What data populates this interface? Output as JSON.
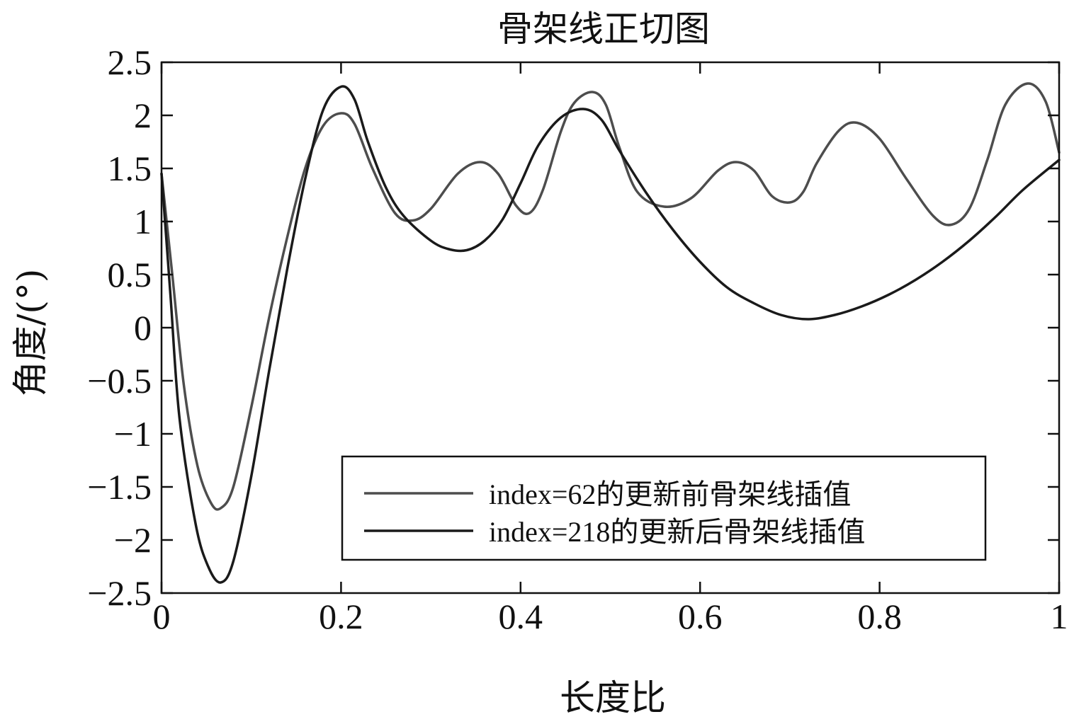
{
  "chart_data": {
    "type": "line",
    "title": "骨架线正切图",
    "xlabel": "长度比",
    "ylabel": "角度/(°)",
    "xlim": [
      0,
      1
    ],
    "ylim": [
      -2.5,
      2.5
    ],
    "x_ticks": [
      0,
      0.2,
      0.4,
      0.6,
      0.8,
      1
    ],
    "x_tick_labels": [
      "0",
      "0.2",
      "0.4",
      "0.6",
      "0.8",
      "1"
    ],
    "y_ticks": [
      2.5,
      2,
      1.5,
      1,
      0.5,
      0,
      -0.5,
      -1,
      -1.5,
      -2,
      -2.5
    ],
    "y_tick_labels": [
      "2.5",
      "2",
      "1.5",
      "1",
      "0.5",
      "0",
      "−0.5",
      "−1",
      "−1.5",
      "−2",
      "−2.5"
    ],
    "grid": false,
    "legend_position": "bottom-right",
    "series": [
      {
        "name": "index=62的更新前骨架线插值",
        "color": "#4d4d4d",
        "points": [
          [
            0,
            1.45
          ],
          [
            0.012,
            0.5
          ],
          [
            0.025,
            -0.55
          ],
          [
            0.04,
            -1.3
          ],
          [
            0.055,
            -1.65
          ],
          [
            0.066,
            -1.7
          ],
          [
            0.08,
            -1.5
          ],
          [
            0.1,
            -0.75
          ],
          [
            0.12,
            0.1
          ],
          [
            0.14,
            0.85
          ],
          [
            0.16,
            1.5
          ],
          [
            0.18,
            1.9
          ],
          [
            0.2,
            2.02
          ],
          [
            0.215,
            1.92
          ],
          [
            0.235,
            1.5
          ],
          [
            0.26,
            1.08
          ],
          [
            0.28,
            1.01
          ],
          [
            0.3,
            1.12
          ],
          [
            0.33,
            1.45
          ],
          [
            0.355,
            1.56
          ],
          [
            0.375,
            1.45
          ],
          [
            0.395,
            1.15
          ],
          [
            0.41,
            1.08
          ],
          [
            0.425,
            1.3
          ],
          [
            0.445,
            1.85
          ],
          [
            0.46,
            2.12
          ],
          [
            0.48,
            2.22
          ],
          [
            0.495,
            2.1
          ],
          [
            0.51,
            1.7
          ],
          [
            0.53,
            1.28
          ],
          [
            0.56,
            1.14
          ],
          [
            0.59,
            1.22
          ],
          [
            0.62,
            1.48
          ],
          [
            0.64,
            1.56
          ],
          [
            0.66,
            1.48
          ],
          [
            0.68,
            1.24
          ],
          [
            0.7,
            1.18
          ],
          [
            0.715,
            1.28
          ],
          [
            0.73,
            1.55
          ],
          [
            0.755,
            1.86
          ],
          [
            0.775,
            1.93
          ],
          [
            0.8,
            1.78
          ],
          [
            0.83,
            1.4
          ],
          [
            0.86,
            1.05
          ],
          [
            0.88,
            0.97
          ],
          [
            0.9,
            1.12
          ],
          [
            0.92,
            1.58
          ],
          [
            0.94,
            2.1
          ],
          [
            0.965,
            2.3
          ],
          [
            0.985,
            2.13
          ],
          [
            1,
            1.65
          ]
        ]
      },
      {
        "name": "index=218的更新后骨架线插值",
        "color": "#1a1a1a",
        "points": [
          [
            0,
            1.45
          ],
          [
            0.01,
            0.3
          ],
          [
            0.02,
            -0.85
          ],
          [
            0.038,
            -1.85
          ],
          [
            0.052,
            -2.25
          ],
          [
            0.066,
            -2.4
          ],
          [
            0.08,
            -2.2
          ],
          [
            0.1,
            -1.4
          ],
          [
            0.12,
            -0.4
          ],
          [
            0.14,
            0.55
          ],
          [
            0.16,
            1.4
          ],
          [
            0.18,
            2.05
          ],
          [
            0.2,
            2.27
          ],
          [
            0.215,
            2.15
          ],
          [
            0.23,
            1.75
          ],
          [
            0.25,
            1.32
          ],
          [
            0.27,
            1.05
          ],
          [
            0.3,
            0.82
          ],
          [
            0.32,
            0.74
          ],
          [
            0.34,
            0.73
          ],
          [
            0.36,
            0.82
          ],
          [
            0.38,
            1.02
          ],
          [
            0.4,
            1.36
          ],
          [
            0.42,
            1.72
          ],
          [
            0.445,
            1.98
          ],
          [
            0.47,
            2.06
          ],
          [
            0.49,
            1.96
          ],
          [
            0.51,
            1.67
          ],
          [
            0.54,
            1.27
          ],
          [
            0.57,
            0.92
          ],
          [
            0.6,
            0.62
          ],
          [
            0.63,
            0.38
          ],
          [
            0.66,
            0.23
          ],
          [
            0.69,
            0.12
          ],
          [
            0.72,
            0.08
          ],
          [
            0.75,
            0.12
          ],
          [
            0.78,
            0.2
          ],
          [
            0.81,
            0.31
          ],
          [
            0.84,
            0.45
          ],
          [
            0.87,
            0.62
          ],
          [
            0.9,
            0.82
          ],
          [
            0.93,
            1.05
          ],
          [
            0.96,
            1.3
          ],
          [
            1,
            1.58
          ]
        ]
      }
    ]
  }
}
